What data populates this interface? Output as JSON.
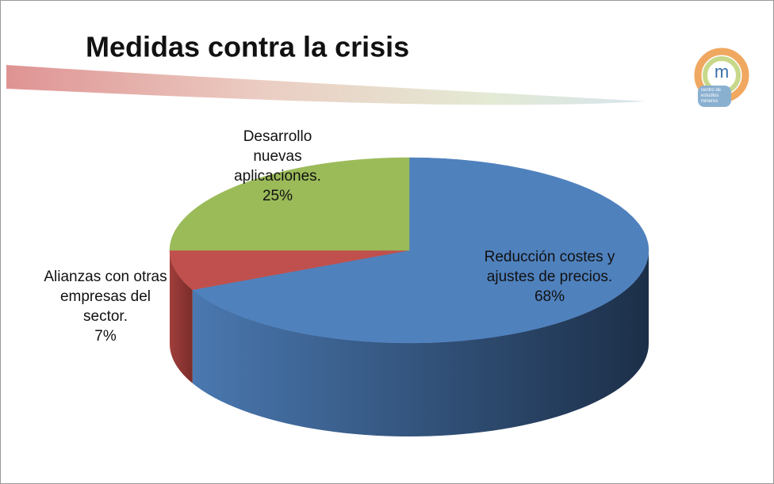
{
  "chart_data": {
    "type": "pie3d",
    "title": "Medidas contra la crisis",
    "categories": [
      "Reducción costes y ajustes de precios.",
      "Alianzas con otras empresas del sector.",
      "Desarrollo nuevas aplicaciones."
    ],
    "values": [
      68,
      7,
      25
    ],
    "value_labels": [
      "68%",
      "7%",
      "25%"
    ],
    "colors": [
      "#4f81bd",
      "#c0504d",
      "#9bbb59"
    ]
  },
  "logo": {
    "letter": "m",
    "text": "centro de estudios mineros"
  }
}
